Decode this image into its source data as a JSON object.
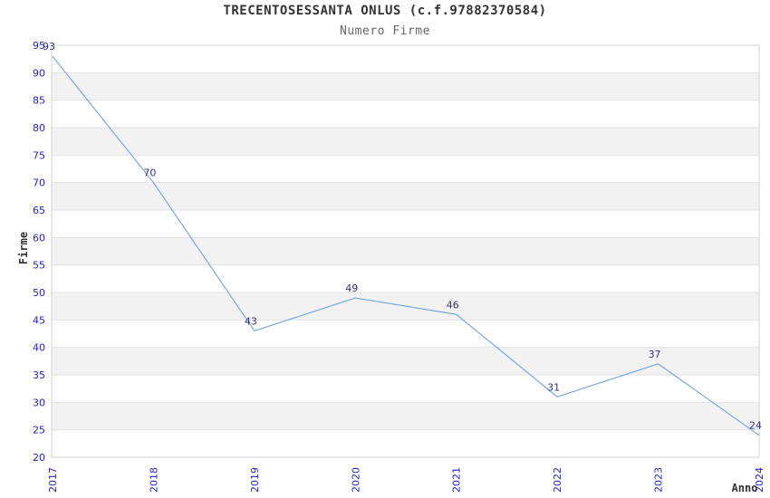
{
  "page": {
    "background": "#ffffff"
  },
  "chart_data": {
    "type": "line",
    "title": "TRECENTOSESSANTA ONLUS (c.f.97882370584)",
    "subtitle": "Numero Firme",
    "xlabel": "Anno",
    "ylabel": "Firme",
    "categories": [
      "2017",
      "2018",
      "2019",
      "2020",
      "2021",
      "2022",
      "2023",
      "2024"
    ],
    "values": [
      93,
      70,
      43,
      49,
      46,
      31,
      37,
      24
    ],
    "series_name": "Numero Firme",
    "data_labels": [
      "93",
      "70",
      "43",
      "49",
      "46",
      "31",
      "37",
      "24"
    ],
    "ylim": [
      20,
      95
    ],
    "ytick_step": 5,
    "yticks": [
      20,
      25,
      30,
      35,
      40,
      45,
      50,
      55,
      60,
      65,
      70,
      75,
      80,
      85,
      90,
      95
    ],
    "grid": true,
    "legend": "none",
    "gray_bands": [
      [
        85,
        90
      ],
      [
        75,
        80
      ],
      [
        65,
        70
      ],
      [
        55,
        60
      ],
      [
        45,
        50
      ],
      [
        35,
        40
      ],
      [
        25,
        30
      ]
    ],
    "colors": {
      "line": "#79a7e0",
      "tick_label": "#2222cc",
      "data_label": "#333377",
      "band": "#f2f2f2",
      "gridline": "#e2e2e2",
      "border": "#d3d3d3",
      "title": "#333333",
      "subtitle": "#666666",
      "axis_label": "#333333",
      "plot_background": "#ffffff"
    }
  }
}
